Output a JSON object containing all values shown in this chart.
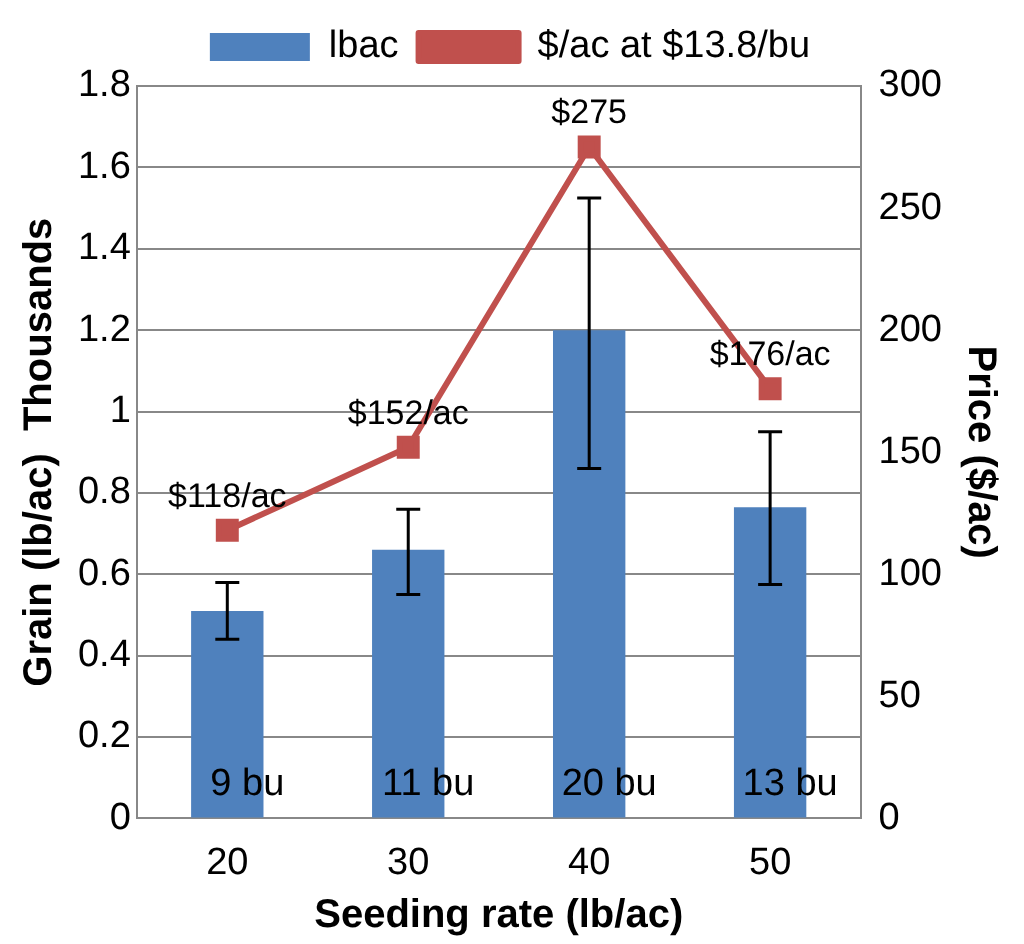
{
  "chart_data": {
    "type": "bar",
    "xlabel": "Seeding rate (lb/ac)",
    "ylabel": "Grain (lb/ac)  Thousands",
    "y2label": "Price ($/ac)",
    "categories": [
      "20",
      "30",
      "40",
      "50"
    ],
    "series": [
      {
        "name": "lbac",
        "color": "#4f81bd",
        "values": [
          0.51,
          0.66,
          1.2,
          0.765
        ],
        "errors": [
          [
            0.44,
            0.58
          ],
          [
            0.55,
            0.76
          ],
          [
            0.86,
            1.525
          ],
          [
            0.575,
            0.95
          ]
        ]
      },
      {
        "name": "$/ac at $13.8/bu",
        "type": "line",
        "axis": "y2",
        "color": "#c0504d",
        "marker": "square",
        "values": [
          118,
          152,
          275,
          176
        ],
        "value_labels": [
          "$118/ac",
          "$152/ac",
          "$275",
          "$176/ac"
        ]
      }
    ],
    "ylim": [
      0,
      1.8
    ],
    "yticks": [
      0,
      0.2,
      0.4,
      0.6,
      0.8,
      1,
      1.2,
      1.4,
      1.6,
      1.8
    ],
    "y2lim": [
      0,
      300
    ],
    "y2ticks": [
      0,
      50,
      100,
      150,
      200,
      250,
      300
    ],
    "grid": "y",
    "legend": "top",
    "annotations": [
      "9 bu",
      "11 bu",
      "20 bu",
      "13 bu"
    ]
  }
}
